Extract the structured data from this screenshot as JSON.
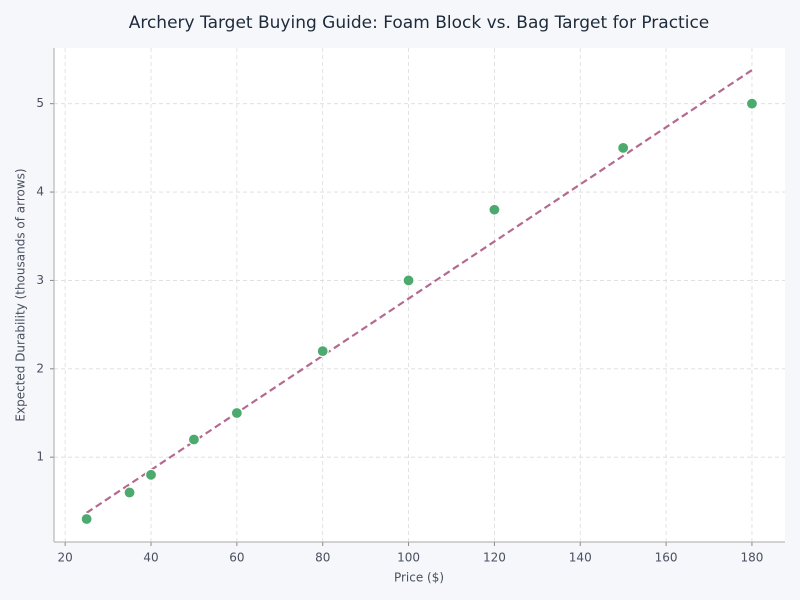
{
  "chart_data": {
    "type": "scatter",
    "title": "Archery Target Buying Guide: Foam Block vs. Bag Target for Practice",
    "x_label": "Price ($)",
    "y_label": "Expected Durability (thousands of arrows)",
    "series": [
      {
        "x": [
          25,
          35,
          40,
          50,
          60,
          80,
          100,
          120,
          150,
          180
        ],
        "values": [
          0.3,
          0.6,
          0.8,
          1.2,
          1.5,
          2.2,
          3.0,
          3.8,
          4.5,
          5.0
        ],
        "color": "#4caa6e"
      }
    ],
    "trend": {
      "x": [
        25,
        180
      ],
      "values": [
        0.37,
        5.38
      ],
      "color": "#b5698f"
    },
    "xlim": [
      17.4,
      187.7
    ],
    "ylim": [
      0.04,
      5.63
    ],
    "xticks": [
      20,
      40,
      60,
      80,
      100,
      120,
      140,
      160,
      180
    ],
    "yticks": [
      1,
      2,
      3,
      4,
      5
    ],
    "grid": true
  }
}
